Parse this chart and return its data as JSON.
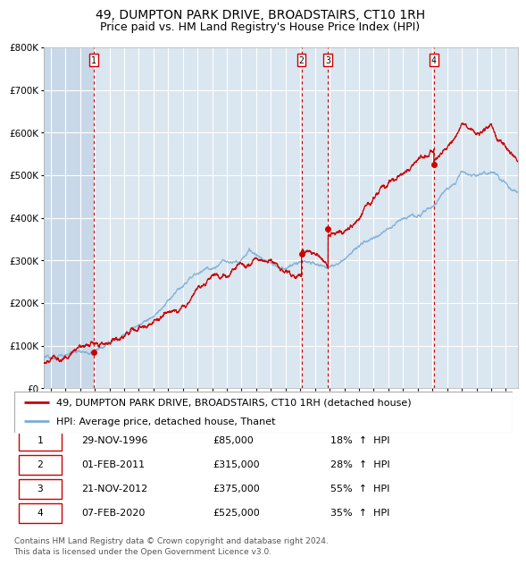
{
  "title": "49, DUMPTON PARK DRIVE, BROADSTAIRS, CT10 1RH",
  "subtitle": "Price paid vs. HM Land Registry's House Price Index (HPI)",
  "ylim": [
    0,
    800000
  ],
  "yticks": [
    0,
    100000,
    200000,
    300000,
    400000,
    500000,
    600000,
    700000,
    800000
  ],
  "ytick_labels": [
    "£0",
    "£100K",
    "£200K",
    "£300K",
    "£400K",
    "£500K",
    "£600K",
    "£700K",
    "£800K"
  ],
  "plot_bg_color": "#dae6f0",
  "grid_color": "#ffffff",
  "red_line_color": "#cc0000",
  "blue_line_color": "#7aadd4",
  "marker_color": "#cc0000",
  "title_fontsize": 10,
  "subtitle_fontsize": 9,
  "tick_fontsize": 7.5,
  "legend_fontsize": 8,
  "table_fontsize": 8,
  "purchases": [
    {
      "num": 1,
      "date": "29-NOV-1996",
      "x": 1996.92,
      "price": 85000,
      "pct": "18%",
      "dir": "↑"
    },
    {
      "num": 2,
      "date": "01-FEB-2011",
      "x": 2011.08,
      "price": 315000,
      "pct": "28%",
      "dir": "↑"
    },
    {
      "num": 3,
      "date": "21-NOV-2012",
      "x": 2012.89,
      "price": 375000,
      "pct": "55%",
      "dir": "↑"
    },
    {
      "num": 4,
      "date": "07-FEB-2020",
      "x": 2020.1,
      "price": 525000,
      "pct": "35%",
      "dir": "↑"
    }
  ],
  "footnote": "Contains HM Land Registry data © Crown copyright and database right 2024.\nThis data is licensed under the Open Government Licence v3.0.",
  "legend_line1": "49, DUMPTON PARK DRIVE, BROADSTAIRS, CT10 1RH (detached house)",
  "legend_line2": "HPI: Average price, detached house, Thanet",
  "xmin": 1993.5,
  "xmax": 2025.8
}
